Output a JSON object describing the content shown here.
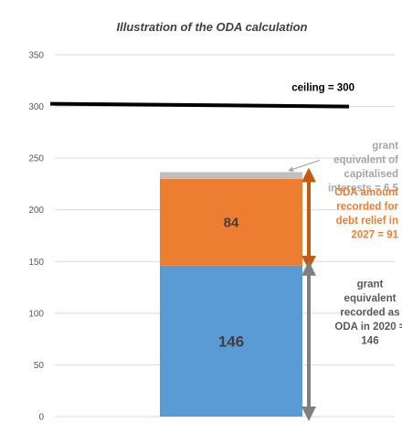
{
  "chart_data": {
    "type": "bar",
    "stacked": true,
    "title": "Illustration of the ODA calculation",
    "categories": [
      ""
    ],
    "ylim": [
      0,
      350
    ],
    "yticks": [
      0,
      50,
      100,
      150,
      200,
      250,
      300,
      350
    ],
    "grid": true,
    "series": [
      {
        "values": [
          146
        ],
        "color": "#5b9bd5",
        "label": "146"
      },
      {
        "values": [
          84
        ],
        "color": "#ed7d31",
        "label": "84"
      },
      {
        "values": [
          6.5
        ],
        "color": "#bfbfbf"
      }
    ],
    "ceiling": {
      "value": 300,
      "label": "ceiling = 300",
      "color": "#000000"
    },
    "annotations": [
      {
        "lines": [
          "grant",
          "equivalent of",
          "capitalised",
          "interests = 6.5"
        ],
        "color": "#a6a6a6"
      },
      {
        "lines": [
          "ODA amount",
          "recorded for",
          "debt relief in",
          "2027 = 91"
        ],
        "color": "#ed7d31"
      },
      {
        "lines": [
          "grant",
          "equivalent",
          "recorded as",
          "ODA in 2020 =",
          "146"
        ],
        "color": "#595959"
      }
    ],
    "arrows": [
      {
        "from": 146,
        "to": 236.5,
        "color": "#c55a11"
      },
      {
        "from": 0,
        "to": 146,
        "color": "#7f7f7f"
      }
    ]
  }
}
